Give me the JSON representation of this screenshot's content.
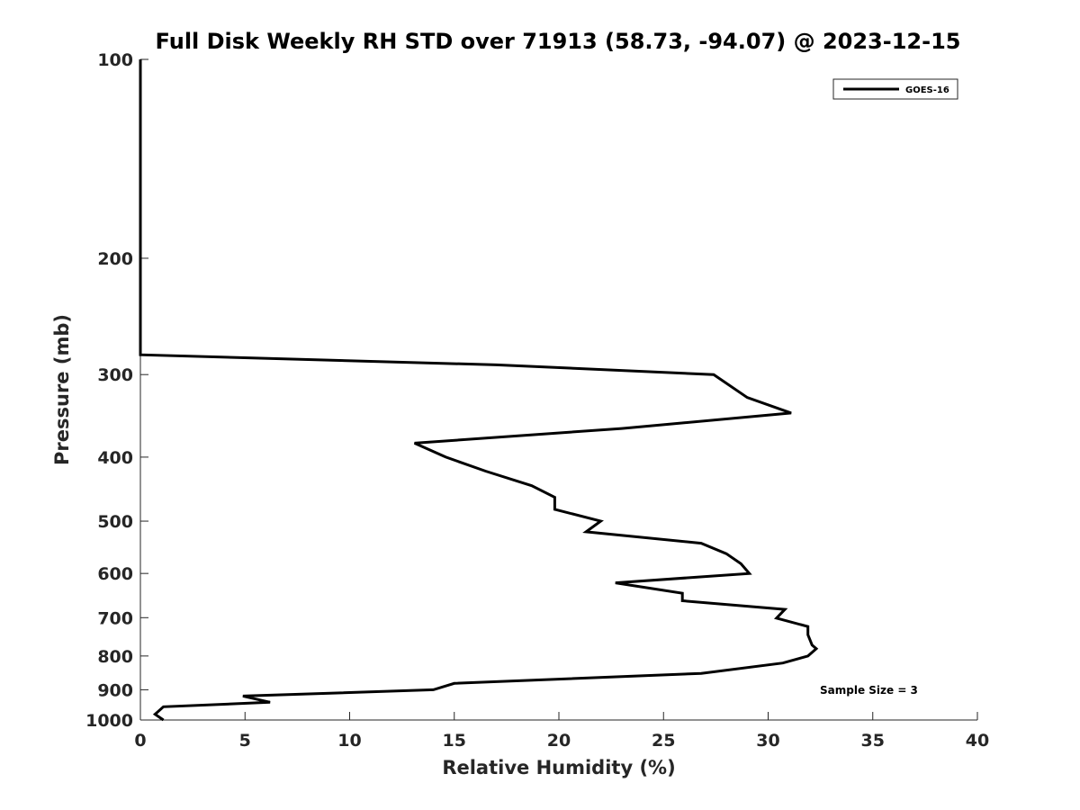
{
  "chart_data": {
    "type": "line",
    "title": "Full Disk Weekly RH STD over 71913 (58.73, -94.07) @ 2023-12-15",
    "xlabel": "Relative Humidity (%)",
    "ylabel": "Pressure (mb)",
    "xlim": [
      0,
      40
    ],
    "ylim": [
      100,
      1000
    ],
    "y_scale": "log",
    "y_reversed": true,
    "x_ticks": [
      0,
      5,
      10,
      15,
      20,
      25,
      30,
      35,
      40
    ],
    "x_tick_labels": [
      "0",
      "5",
      "10",
      "15",
      "20",
      "25",
      "30",
      "35",
      "40"
    ],
    "y_ticks": [
      100,
      200,
      300,
      400,
      500,
      600,
      700,
      800,
      900,
      1000
    ],
    "y_tick_labels": [
      "100",
      "200",
      "300",
      "400",
      "500",
      "600",
      "700",
      "800",
      "900",
      "1000"
    ],
    "grid": false,
    "legend_position": "top-right",
    "annotation": "Sample Size = 3",
    "series": [
      {
        "name": "GOES-16",
        "color": "#000000",
        "points": [
          [
            0,
            100
          ],
          [
            0,
            150
          ],
          [
            0,
            200
          ],
          [
            0,
            250
          ],
          [
            0,
            280
          ],
          [
            17,
            290
          ],
          [
            27.4,
            300
          ],
          [
            29.0,
            325
          ],
          [
            31.1,
            343
          ],
          [
            23.0,
            362
          ],
          [
            13.1,
            381
          ],
          [
            14.6,
            400
          ],
          [
            16.5,
            420
          ],
          [
            18.7,
            442
          ],
          [
            19.8,
            460
          ],
          [
            19.8,
            480
          ],
          [
            22.0,
            500
          ],
          [
            21.3,
            519
          ],
          [
            26.8,
            540
          ],
          [
            28.0,
            560
          ],
          [
            28.7,
            580
          ],
          [
            29.1,
            600
          ],
          [
            22.7,
            620
          ],
          [
            25.9,
            643
          ],
          [
            25.9,
            660
          ],
          [
            30.8,
            680
          ],
          [
            30.4,
            701
          ],
          [
            31.9,
            722
          ],
          [
            31.9,
            743
          ],
          [
            32.1,
            770
          ],
          [
            32.3,
            780
          ],
          [
            31.9,
            800
          ],
          [
            30.7,
            820
          ],
          [
            26.8,
            850
          ],
          [
            15.0,
            880
          ],
          [
            14.0,
            900
          ],
          [
            4.9,
            920
          ],
          [
            6.2,
            940
          ],
          [
            1.1,
            955
          ],
          [
            0.7,
            980
          ],
          [
            1.1,
            1000
          ]
        ]
      }
    ]
  }
}
